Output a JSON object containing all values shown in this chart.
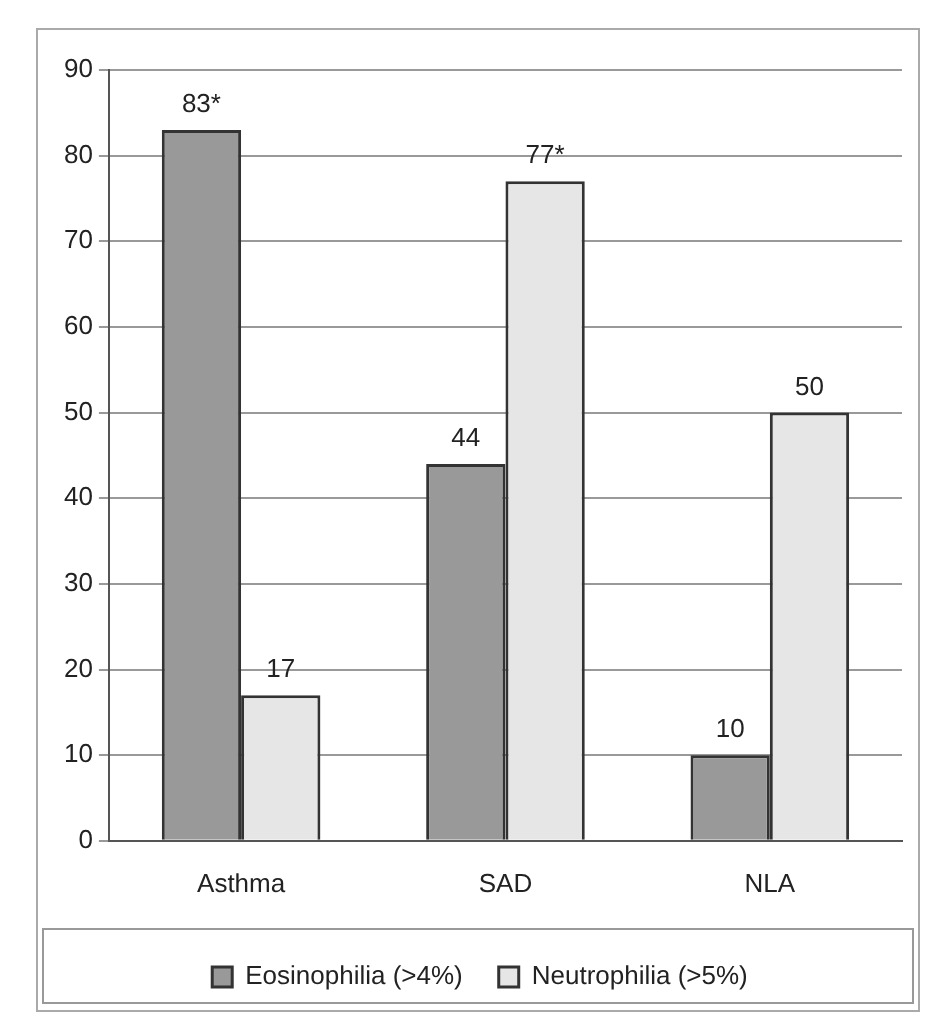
{
  "chart_data": {
    "type": "bar",
    "categories": [
      "Asthma",
      "SAD",
      "NLA"
    ],
    "series": [
      {
        "name": "Eosinophilia (>4%)",
        "color": "#999999",
        "values": [
          83,
          44,
          10
        ],
        "value_labels": [
          "83*",
          "44",
          "10"
        ]
      },
      {
        "name": "Neutrophilia (>5%)",
        "color": "#e6e6e6",
        "values": [
          17,
          77,
          50
        ],
        "value_labels": [
          "17",
          "77*",
          "50"
        ]
      }
    ],
    "ylim": [
      0,
      90
    ],
    "yticks": [
      0,
      10,
      20,
      30,
      40,
      50,
      60,
      70,
      80,
      90
    ],
    "grid": "y",
    "legend": "bottom"
  }
}
